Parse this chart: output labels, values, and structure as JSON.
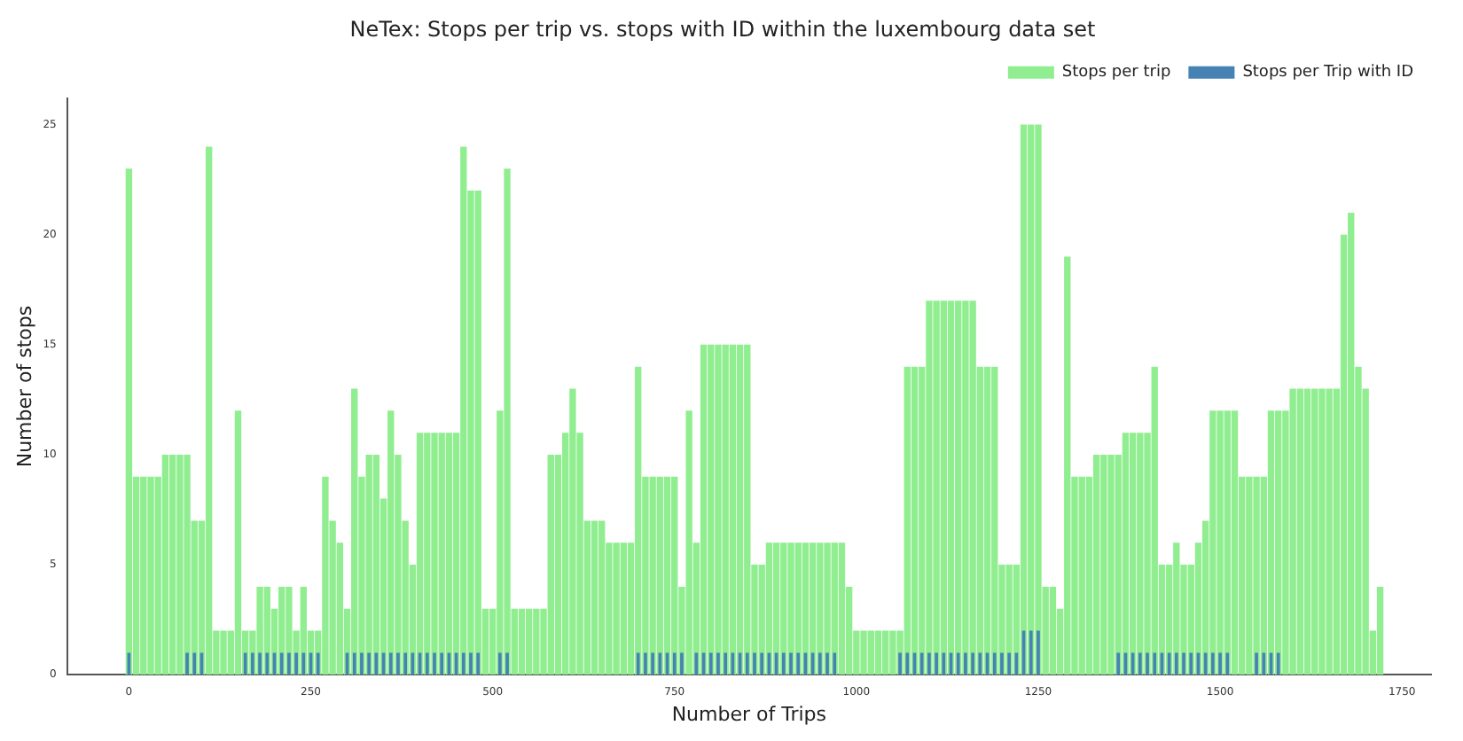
{
  "chart_data": {
    "type": "bar",
    "title": "NeTex: Stops per trip vs. stops with ID within the luxembourg data set",
    "xlabel": "Number of Trips",
    "ylabel": "Number of stops",
    "x": [
      0,
      10,
      20,
      30,
      40,
      50,
      60,
      70,
      80,
      90,
      100,
      110,
      120,
      130,
      140,
      150,
      160,
      170,
      180,
      190,
      200,
      210,
      220,
      230,
      240,
      250,
      260,
      270,
      280,
      290,
      300,
      310,
      320,
      330,
      340,
      350,
      360,
      370,
      380,
      390,
      400,
      410,
      420,
      430,
      440,
      450,
      460,
      470,
      480,
      490,
      500,
      510,
      520,
      530,
      540,
      550,
      560,
      570,
      580,
      590,
      600,
      610,
      620,
      630,
      640,
      650,
      660,
      670,
      680,
      690,
      700,
      710,
      720,
      730,
      740,
      750,
      760,
      770,
      780,
      790,
      800,
      810,
      820,
      830,
      840,
      850,
      860,
      870,
      880,
      890,
      900,
      910,
      920,
      930,
      940,
      950,
      960,
      970,
      980,
      990,
      1000,
      1010,
      1020,
      1030,
      1040,
      1050,
      1060,
      1070,
      1080,
      1090,
      1100,
      1110,
      1120,
      1130,
      1140,
      1150,
      1160,
      1170,
      1180,
      1190,
      1200,
      1210,
      1220,
      1230,
      1240,
      1250,
      1260,
      1270,
      1280,
      1290,
      1300,
      1310,
      1320,
      1330,
      1340,
      1350,
      1360,
      1370,
      1380,
      1390,
      1400,
      1410,
      1420,
      1430,
      1440,
      1450,
      1460,
      1470,
      1480,
      1490,
      1500,
      1510,
      1520,
      1530,
      1540,
      1550,
      1560,
      1570,
      1580,
      1590,
      1600,
      1610,
      1620,
      1630,
      1640,
      1650,
      1660,
      1670,
      1680,
      1690,
      1700,
      1710,
      1720
    ],
    "series": [
      {
        "name": "Stops per trip",
        "color": "#90ee90",
        "values": [
          23,
          9,
          9,
          9,
          9,
          10,
          10,
          10,
          10,
          7,
          7,
          24,
          2,
          2,
          2,
          12,
          2,
          2,
          4,
          4,
          3,
          4,
          4,
          2,
          4,
          2,
          2,
          9,
          7,
          6,
          3,
          13,
          9,
          10,
          10,
          8,
          12,
          10,
          7,
          5,
          11,
          11,
          11,
          11,
          11,
          11,
          24,
          22,
          22,
          3,
          3,
          12,
          23,
          3,
          3,
          3,
          3,
          3,
          10,
          10,
          11,
          13,
          11,
          7,
          7,
          7,
          6,
          6,
          6,
          6,
          14,
          9,
          9,
          9,
          9,
          9,
          4,
          12,
          6,
          15,
          15,
          15,
          15,
          15,
          15,
          15,
          5,
          5,
          6,
          6,
          6,
          6,
          6,
          6,
          6,
          6,
          6,
          6,
          6,
          4,
          2,
          2,
          2,
          2,
          2,
          2,
          2,
          14,
          14,
          14,
          17,
          17,
          17,
          17,
          17,
          17,
          17,
          14,
          14,
          14,
          5,
          5,
          5,
          25,
          25,
          25,
          4,
          4,
          3,
          19,
          9,
          9,
          9,
          10,
          10,
          10,
          10,
          11,
          11,
          11,
          11,
          14,
          5,
          5,
          6,
          5,
          5,
          6,
          7,
          12,
          12,
          12,
          12,
          9,
          9,
          9,
          9,
          12,
          12,
          12,
          13,
          13,
          13,
          13,
          13,
          13,
          13,
          20,
          21,
          14,
          13,
          2,
          4
        ]
      },
      {
        "name": "Stops per Trip with ID",
        "color": "#4682b4",
        "values": [
          1,
          0,
          0,
          0,
          0,
          0,
          0,
          0,
          1,
          1,
          1,
          0,
          0,
          0,
          0,
          0,
          1,
          1,
          1,
          1,
          1,
          1,
          1,
          1,
          1,
          1,
          1,
          0,
          0,
          0,
          1,
          1,
          1,
          1,
          1,
          1,
          1,
          1,
          1,
          1,
          1,
          1,
          1,
          1,
          1,
          1,
          1,
          1,
          1,
          0,
          0,
          1,
          1,
          0,
          0,
          0,
          0,
          0,
          0,
          0,
          0,
          0,
          0,
          0,
          0,
          0,
          0,
          0,
          0,
          0,
          1,
          1,
          1,
          1,
          1,
          1,
          1,
          0,
          1,
          1,
          1,
          1,
          1,
          1,
          1,
          1,
          1,
          1,
          1,
          1,
          1,
          1,
          1,
          1,
          1,
          1,
          1,
          1,
          0,
          0,
          0,
          0,
          0,
          0,
          0,
          0,
          1,
          1,
          1,
          1,
          1,
          1,
          1,
          1,
          1,
          1,
          1,
          1,
          1,
          1,
          1,
          1,
          1,
          2,
          2,
          2,
          0,
          0,
          0,
          0,
          0,
          0,
          0,
          0,
          0,
          0,
          1,
          1,
          1,
          1,
          1,
          1,
          1,
          1,
          1,
          1,
          1,
          1,
          1,
          1,
          1,
          1,
          0,
          0,
          0,
          1,
          1,
          1,
          1,
          0,
          0,
          0,
          0,
          0,
          0,
          0,
          0,
          0,
          0,
          0,
          0,
          0,
          0
        ]
      }
    ],
    "xlim": [
      -85,
      1790
    ],
    "ylim": [
      0,
      26.2
    ],
    "xticks": [
      0,
      250,
      500,
      750,
      1000,
      1250,
      1500,
      1750
    ],
    "yticks": [
      0,
      5,
      10,
      15,
      20,
      25
    ],
    "grid": false,
    "legend": "top right"
  }
}
